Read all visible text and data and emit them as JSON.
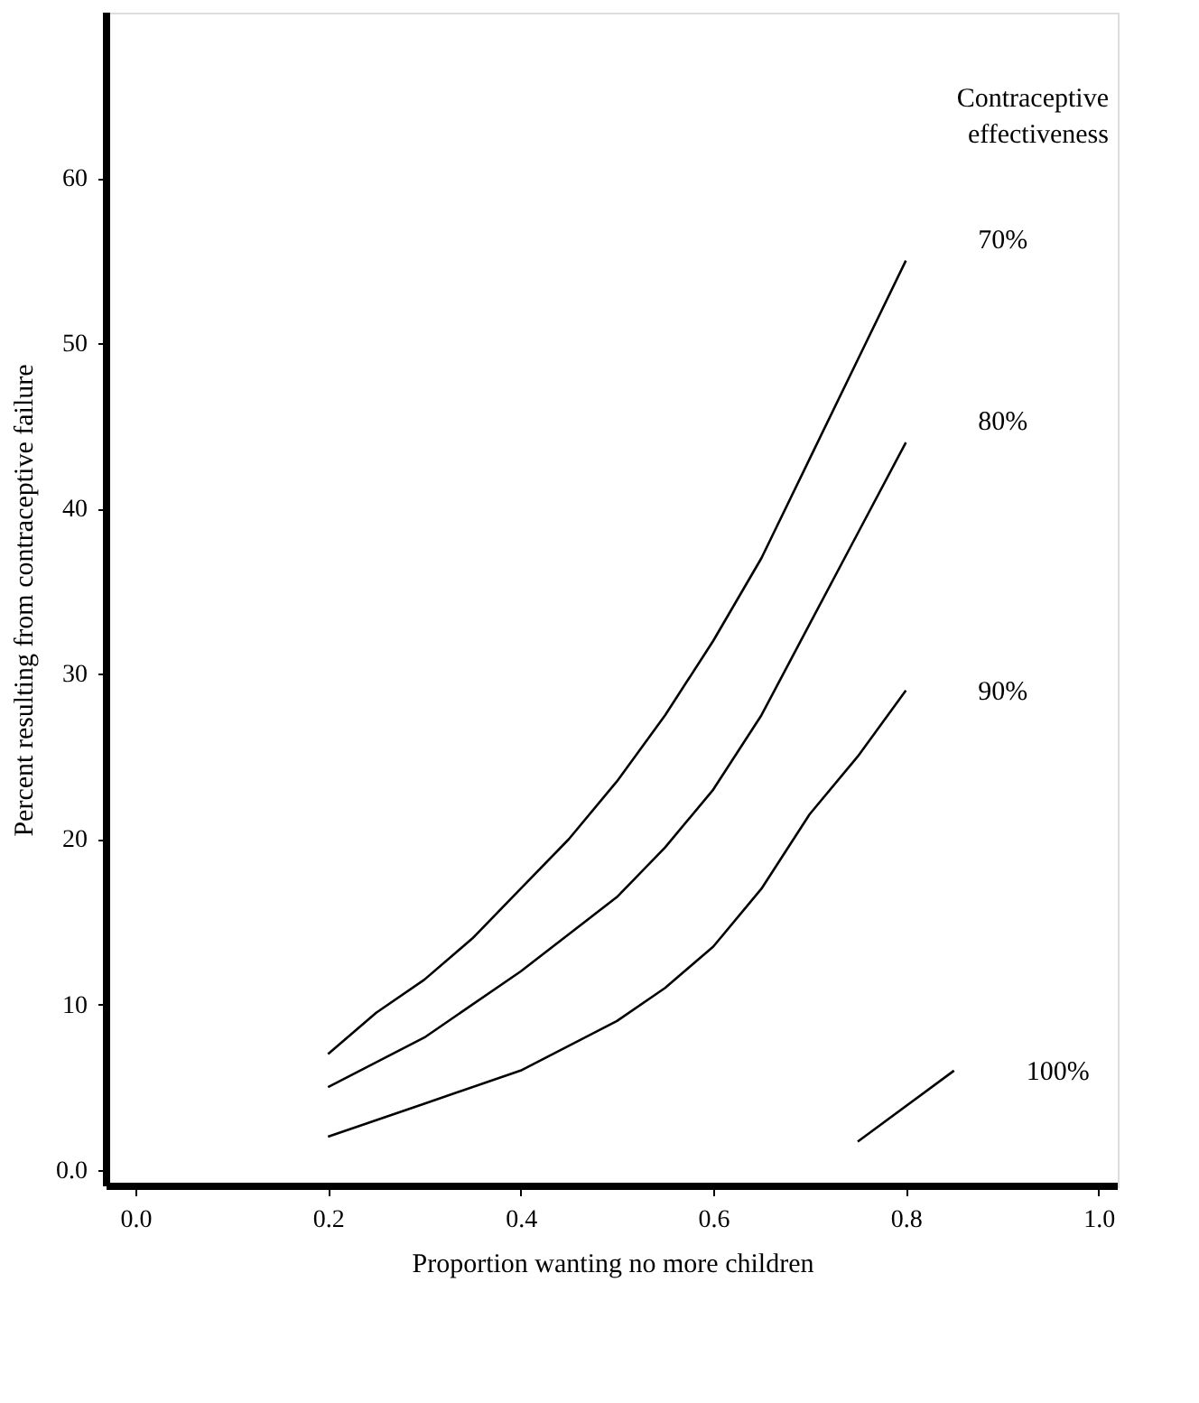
{
  "chart_data": {
    "type": "line",
    "xlabel": "Proportion wanting no more children",
    "ylabel": "Percent resulting from contraceptive failure",
    "legend_title": "Contraceptive effectiveness",
    "xlim": [
      -0.03,
      1.02
    ],
    "ylim": [
      -1,
      70
    ],
    "xticks": [
      {
        "value": 0,
        "label": "0.0"
      },
      0.2,
      0.4,
      0.6,
      0.8,
      {
        "value": 1,
        "label": "1.0"
      }
    ],
    "yticks": [
      {
        "value": 0,
        "label": "0.0"
      },
      10,
      20,
      30,
      40,
      50,
      60
    ],
    "grid": false,
    "legend": false,
    "marker": "none",
    "line_style": "solid",
    "series": [
      {
        "name": "70%",
        "color": "#000000",
        "x": [
          0.2,
          0.25,
          0.3,
          0.35,
          0.4,
          0.45,
          0.5,
          0.55,
          0.6,
          0.65,
          0.7,
          0.75,
          0.8
        ],
        "values": [
          7,
          9.5,
          11.5,
          14,
          17,
          20,
          23.5,
          27.5,
          32,
          37,
          43,
          49,
          55
        ]
      },
      {
        "name": "80%",
        "color": "#000000",
        "x": [
          0.2,
          0.3,
          0.4,
          0.5,
          0.55,
          0.6,
          0.65,
          0.7,
          0.75,
          0.8
        ],
        "values": [
          5,
          8,
          12,
          16.5,
          19.5,
          23,
          27.5,
          33,
          38.5,
          44
        ]
      },
      {
        "name": "90%",
        "color": "#000000",
        "x": [
          0.2,
          0.3,
          0.4,
          0.5,
          0.55,
          0.6,
          0.65,
          0.7,
          0.75,
          0.8
        ],
        "values": [
          2,
          4,
          6,
          9,
          11,
          13.5,
          17,
          21.5,
          25,
          29
        ]
      },
      {
        "name": "100%",
        "color": "#000000",
        "x": [
          0.75,
          0.85
        ],
        "values": [
          1.7,
          6
        ]
      }
    ]
  }
}
